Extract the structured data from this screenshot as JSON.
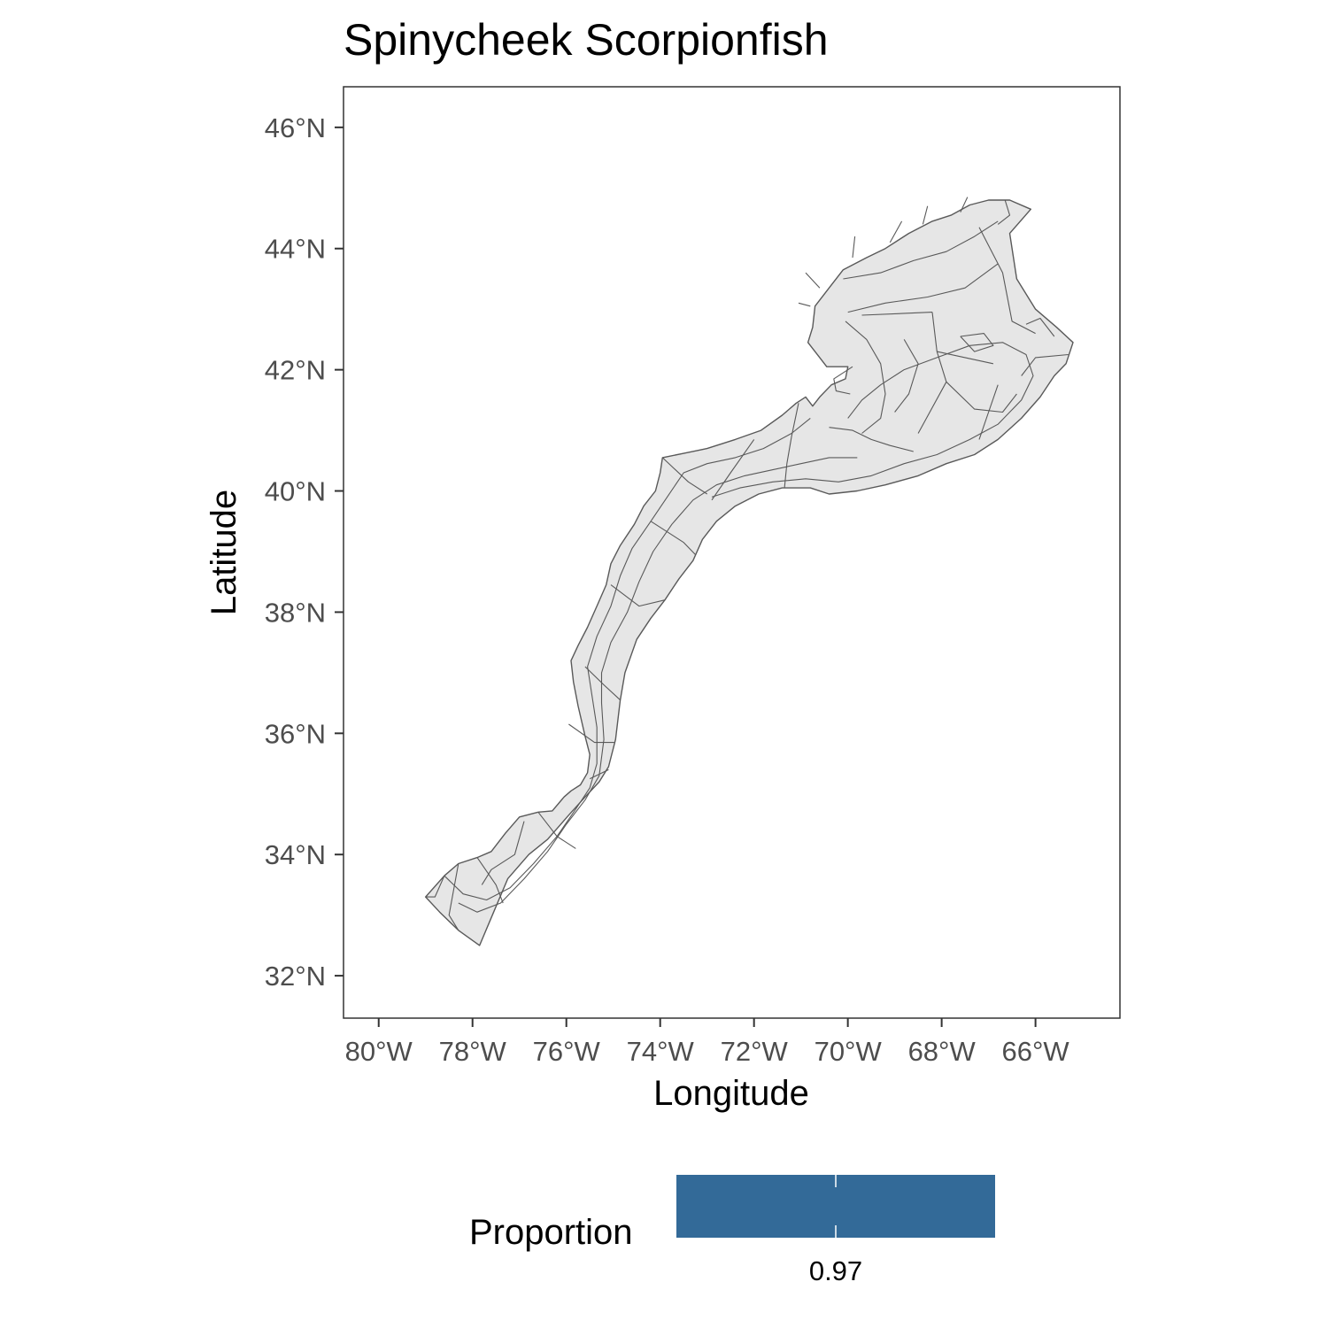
{
  "title": "Spinycheek Scorpionfish",
  "x_axis": {
    "label": "Longitude",
    "range": [
      -80.75,
      -64.2
    ],
    "ticks": [
      {
        "value": -80,
        "label": "80°W"
      },
      {
        "value": -78,
        "label": "78°W"
      },
      {
        "value": -76,
        "label": "76°W"
      },
      {
        "value": -74,
        "label": "74°W"
      },
      {
        "value": -72,
        "label": "72°W"
      },
      {
        "value": -70,
        "label": "70°W"
      },
      {
        "value": -68,
        "label": "68°W"
      },
      {
        "value": -66,
        "label": "66°W"
      }
    ]
  },
  "y_axis": {
    "label": "Latitude",
    "range": [
      31.3,
      46.67
    ],
    "ticks": [
      {
        "value": 46,
        "label": "46°N"
      },
      {
        "value": 44,
        "label": "44°N"
      },
      {
        "value": 42,
        "label": "42°N"
      },
      {
        "value": 40,
        "label": "40°N"
      },
      {
        "value": 38,
        "label": "38°N"
      },
      {
        "value": 36,
        "label": "36°N"
      },
      {
        "value": 34,
        "label": "34°N"
      },
      {
        "value": 32,
        "label": "32°N"
      }
    ]
  },
  "legend": {
    "title": "Proportion",
    "position": "bottom",
    "value_label": "0.97",
    "value": 0.97,
    "fill_color": "#336a98"
  },
  "map": {
    "region": "US Northeast continental shelf survey strata",
    "fill_color": "#e6e6e6",
    "stroke_color": "#595959",
    "outline": [
      [
        -79.0,
        33.3
      ],
      [
        -78.6,
        33.65
      ],
      [
        -78.3,
        33.85
      ],
      [
        -77.9,
        33.95
      ],
      [
        -77.6,
        34.05
      ],
      [
        -77.3,
        34.35
      ],
      [
        -77.0,
        34.62
      ],
      [
        -76.6,
        34.7
      ],
      [
        -76.3,
        34.72
      ],
      [
        -76.05,
        34.95
      ],
      [
        -75.9,
        35.05
      ],
      [
        -75.7,
        35.15
      ],
      [
        -75.55,
        35.35
      ],
      [
        -75.5,
        35.65
      ],
      [
        -75.6,
        35.95
      ],
      [
        -75.75,
        36.45
      ],
      [
        -75.85,
        36.85
      ],
      [
        -75.9,
        37.2
      ],
      [
        -75.75,
        37.45
      ],
      [
        -75.55,
        37.75
      ],
      [
        -75.35,
        38.1
      ],
      [
        -75.15,
        38.45
      ],
      [
        -75.05,
        38.8
      ],
      [
        -74.85,
        39.1
      ],
      [
        -74.55,
        39.45
      ],
      [
        -74.35,
        39.75
      ],
      [
        -74.1,
        40.0
      ],
      [
        -74.0,
        40.3
      ],
      [
        -73.95,
        40.55
      ],
      [
        -73.5,
        40.62
      ],
      [
        -73.0,
        40.7
      ],
      [
        -72.4,
        40.85
      ],
      [
        -71.85,
        41.0
      ],
      [
        -71.4,
        41.25
      ],
      [
        -71.1,
        41.45
      ],
      [
        -70.9,
        41.55
      ],
      [
        -70.75,
        41.4
      ],
      [
        -70.6,
        41.55
      ],
      [
        -70.35,
        41.75
      ],
      [
        -70.05,
        41.85
      ],
      [
        -70.0,
        42.05
      ],
      [
        -70.45,
        42.05
      ],
      [
        -70.6,
        42.2
      ],
      [
        -70.85,
        42.45
      ],
      [
        -70.75,
        42.7
      ],
      [
        -70.7,
        43.05
      ],
      [
        -70.4,
        43.35
      ],
      [
        -70.1,
        43.65
      ],
      [
        -69.6,
        43.85
      ],
      [
        -69.2,
        44.0
      ],
      [
        -68.7,
        44.25
      ],
      [
        -68.2,
        44.45
      ],
      [
        -67.8,
        44.55
      ],
      [
        -67.4,
        44.72
      ],
      [
        -67.0,
        44.8
      ],
      [
        -66.55,
        44.8
      ],
      [
        -66.1,
        44.65
      ],
      [
        -66.55,
        44.25
      ],
      [
        -66.4,
        43.5
      ],
      [
        -66.0,
        43.0
      ],
      [
        -65.55,
        42.7
      ],
      [
        -65.2,
        42.45
      ],
      [
        -65.35,
        42.1
      ],
      [
        -65.6,
        41.9
      ],
      [
        -65.9,
        41.55
      ],
      [
        -66.3,
        41.2
      ],
      [
        -66.8,
        40.85
      ],
      [
        -67.3,
        40.6
      ],
      [
        -67.9,
        40.45
      ],
      [
        -68.5,
        40.25
      ],
      [
        -69.2,
        40.1
      ],
      [
        -69.8,
        40.0
      ],
      [
        -70.4,
        39.95
      ],
      [
        -70.8,
        40.05
      ],
      [
        -71.4,
        40.05
      ],
      [
        -71.9,
        39.95
      ],
      [
        -72.4,
        39.75
      ],
      [
        -72.8,
        39.5
      ],
      [
        -73.1,
        39.2
      ],
      [
        -73.3,
        38.85
      ],
      [
        -73.6,
        38.55
      ],
      [
        -73.9,
        38.2
      ],
      [
        -74.2,
        37.9
      ],
      [
        -74.5,
        37.55
      ],
      [
        -74.75,
        37.0
      ],
      [
        -74.85,
        36.55
      ],
      [
        -74.95,
        35.9
      ],
      [
        -75.1,
        35.45
      ],
      [
        -75.3,
        35.2
      ],
      [
        -75.6,
        34.95
      ],
      [
        -75.95,
        34.65
      ],
      [
        -76.4,
        34.25
      ],
      [
        -76.8,
        34.0
      ],
      [
        -77.25,
        33.6
      ],
      [
        -77.55,
        33.05
      ],
      [
        -77.85,
        32.5
      ],
      [
        -78.3,
        32.75
      ],
      [
        -78.7,
        33.05
      ],
      [
        -79.0,
        33.3
      ]
    ],
    "inner_lines": [
      [
        [
          -78.6,
          33.65
        ],
        [
          -78.2,
          33.35
        ],
        [
          -77.7,
          33.25
        ],
        [
          -77.2,
          33.45
        ],
        [
          -76.7,
          33.85
        ],
        [
          -76.2,
          34.3
        ],
        [
          -75.8,
          34.75
        ],
        [
          -75.5,
          35.1
        ],
        [
          -75.35,
          35.5
        ],
        [
          -75.35,
          36.1
        ],
        [
          -75.45,
          36.6
        ],
        [
          -75.55,
          37.1
        ],
        [
          -75.35,
          37.6
        ],
        [
          -75.05,
          38.1
        ],
        [
          -74.85,
          38.6
        ],
        [
          -74.6,
          39.05
        ],
        [
          -74.2,
          39.5
        ],
        [
          -73.85,
          39.9
        ],
        [
          -73.5,
          40.3
        ],
        [
          -73.0,
          40.45
        ],
        [
          -72.4,
          40.55
        ],
        [
          -71.8,
          40.7
        ],
        [
          -71.2,
          40.95
        ],
        [
          -70.8,
          41.2
        ]
      ],
      [
        [
          -78.3,
          33.2
        ],
        [
          -77.9,
          33.05
        ],
        [
          -77.4,
          33.2
        ],
        [
          -76.9,
          33.6
        ],
        [
          -76.4,
          34.05
        ],
        [
          -76.0,
          34.5
        ],
        [
          -75.6,
          34.9
        ],
        [
          -75.3,
          35.3
        ],
        [
          -75.2,
          35.9
        ],
        [
          -75.25,
          36.5
        ],
        [
          -75.25,
          37.0
        ],
        [
          -75.05,
          37.5
        ],
        [
          -74.7,
          38.0
        ],
        [
          -74.45,
          38.5
        ],
        [
          -74.15,
          39.0
        ],
        [
          -73.75,
          39.45
        ],
        [
          -73.3,
          39.85
        ],
        [
          -72.8,
          40.1
        ],
        [
          -72.2,
          40.25
        ],
        [
          -71.6,
          40.35
        ],
        [
          -71.0,
          40.45
        ],
        [
          -70.4,
          40.55
        ],
        [
          -69.8,
          40.55
        ]
      ],
      [
        [
          -72.9,
          39.9
        ],
        [
          -72.3,
          40.05
        ],
        [
          -71.6,
          40.15
        ],
        [
          -70.9,
          40.2
        ],
        [
          -70.2,
          40.15
        ],
        [
          -69.5,
          40.25
        ],
        [
          -68.8,
          40.45
        ],
        [
          -68.1,
          40.6
        ],
        [
          -67.4,
          40.85
        ],
        [
          -66.8,
          41.1
        ],
        [
          -66.3,
          41.5
        ],
        [
          -66.05,
          41.9
        ],
        [
          -66.2,
          42.25
        ],
        [
          -66.7,
          42.45
        ],
        [
          -67.4,
          42.4
        ],
        [
          -68.1,
          42.2
        ],
        [
          -68.8,
          42.0
        ],
        [
          -69.3,
          41.75
        ],
        [
          -69.7,
          41.5
        ],
        [
          -70.0,
          41.2
        ]
      ],
      [
        [
          -70.1,
          43.5
        ],
        [
          -69.3,
          43.6
        ],
        [
          -68.6,
          43.8
        ],
        [
          -67.9,
          43.95
        ],
        [
          -67.3,
          44.2
        ],
        [
          -66.8,
          44.45
        ]
      ],
      [
        [
          -70.0,
          42.95
        ],
        [
          -69.2,
          43.1
        ],
        [
          -68.3,
          43.2
        ],
        [
          -67.5,
          43.35
        ],
        [
          -66.8,
          43.75
        ]
      ],
      [
        [
          -70.05,
          42.8
        ],
        [
          -69.6,
          42.5
        ],
        [
          -69.3,
          42.1
        ],
        [
          -69.2,
          41.6
        ],
        [
          -69.3,
          41.2
        ],
        [
          -69.7,
          40.95
        ]
      ],
      [
        [
          -69.7,
          42.9
        ],
        [
          -68.2,
          42.95
        ]
      ],
      [
        [
          -68.2,
          42.95
        ],
        [
          -68.1,
          42.3
        ],
        [
          -67.9,
          41.8
        ]
      ],
      [
        [
          -68.1,
          42.3
        ],
        [
          -66.9,
          42.1
        ]
      ],
      [
        [
          -67.2,
          44.35
        ],
        [
          -66.7,
          43.6
        ],
        [
          -66.5,
          42.8
        ],
        [
          -66.0,
          42.6
        ]
      ],
      [
        [
          -68.8,
          42.5
        ],
        [
          -68.5,
          42.1
        ],
        [
          -68.7,
          41.6
        ],
        [
          -69.0,
          41.3
        ]
      ],
      [
        [
          -67.6,
          42.55
        ],
        [
          -67.1,
          42.6
        ],
        [
          -66.9,
          42.4
        ],
        [
          -67.3,
          42.3
        ],
        [
          -67.6,
          42.55
        ]
      ],
      [
        [
          -67.9,
          41.8
        ],
        [
          -67.3,
          41.35
        ],
        [
          -66.7,
          41.3
        ],
        [
          -66.4,
          41.6
        ]
      ],
      [
        [
          -67.9,
          41.8
        ],
        [
          -68.5,
          40.95
        ]
      ],
      [
        [
          -66.8,
          41.75
        ],
        [
          -67.0,
          41.3
        ],
        [
          -67.2,
          40.85
        ]
      ],
      [
        [
          -70.4,
          41.05
        ],
        [
          -69.9,
          41.0
        ],
        [
          -69.5,
          40.85
        ],
        [
          -69.1,
          40.75
        ],
        [
          -68.6,
          40.65
        ]
      ],
      [
        [
          -71.05,
          41.45
        ],
        [
          -71.2,
          40.9
        ],
        [
          -71.3,
          40.45
        ],
        [
          -71.35,
          40.05
        ]
      ],
      [
        [
          -72.0,
          40.85
        ],
        [
          -72.5,
          40.3
        ],
        [
          -72.9,
          39.85
        ]
      ],
      [
        [
          -73.95,
          40.55
        ],
        [
          -73.4,
          40.15
        ],
        [
          -73.0,
          39.95
        ]
      ],
      [
        [
          -74.2,
          39.5
        ],
        [
          -73.5,
          39.15
        ],
        [
          -73.25,
          38.95
        ]
      ],
      [
        [
          -75.05,
          38.45
        ],
        [
          -74.45,
          38.1
        ],
        [
          -73.9,
          38.2
        ]
      ],
      [
        [
          -75.6,
          37.1
        ],
        [
          -75.2,
          36.8
        ],
        [
          -74.85,
          36.55
        ]
      ],
      [
        [
          -75.95,
          36.15
        ],
        [
          -75.4,
          35.85
        ],
        [
          -74.98,
          35.85
        ]
      ],
      [
        [
          -75.5,
          35.25
        ],
        [
          -75.1,
          35.4
        ]
      ],
      [
        [
          -76.6,
          34.7
        ],
        [
          -76.2,
          34.3
        ],
        [
          -75.8,
          34.1
        ]
      ],
      [
        [
          -77.9,
          33.95
        ],
        [
          -77.5,
          33.5
        ],
        [
          -77.35,
          33.2
        ]
      ],
      [
        [
          -78.6,
          33.65
        ],
        [
          -78.8,
          33.3
        ],
        [
          -79.0,
          33.3
        ]
      ],
      [
        [
          -78.3,
          33.85
        ],
        [
          -78.5,
          33.0
        ],
        [
          -78.3,
          32.75
        ]
      ],
      [
        [
          -76.9,
          34.55
        ],
        [
          -77.1,
          34.0
        ],
        [
          -77.6,
          33.75
        ],
        [
          -77.8,
          33.5
        ]
      ],
      [
        [
          -69.9,
          42.05
        ],
        [
          -70.3,
          41.85
        ],
        [
          -70.25,
          41.65
        ],
        [
          -69.95,
          41.6
        ]
      ],
      [
        [
          -70.8,
          43.05
        ],
        [
          -71.05,
          43.1
        ]
      ],
      [
        [
          -70.6,
          43.35
        ],
        [
          -70.9,
          43.6
        ]
      ],
      [
        [
          -69.9,
          43.85
        ],
        [
          -69.85,
          44.2
        ]
      ],
      [
        [
          -69.1,
          44.1
        ],
        [
          -68.85,
          44.45
        ]
      ],
      [
        [
          -68.4,
          44.4
        ],
        [
          -68.3,
          44.7
        ]
      ],
      [
        [
          -67.6,
          44.6
        ],
        [
          -67.45,
          44.85
        ]
      ],
      [
        [
          -66.65,
          44.8
        ],
        [
          -66.55,
          44.55
        ],
        [
          -66.8,
          44.4
        ]
      ],
      [
        [
          -65.6,
          42.55
        ],
        [
          -65.9,
          42.85
        ],
        [
          -66.2,
          42.75
        ]
      ],
      [
        [
          -65.3,
          42.25
        ],
        [
          -66.0,
          42.2
        ],
        [
          -66.3,
          41.9
        ]
      ]
    ]
  }
}
